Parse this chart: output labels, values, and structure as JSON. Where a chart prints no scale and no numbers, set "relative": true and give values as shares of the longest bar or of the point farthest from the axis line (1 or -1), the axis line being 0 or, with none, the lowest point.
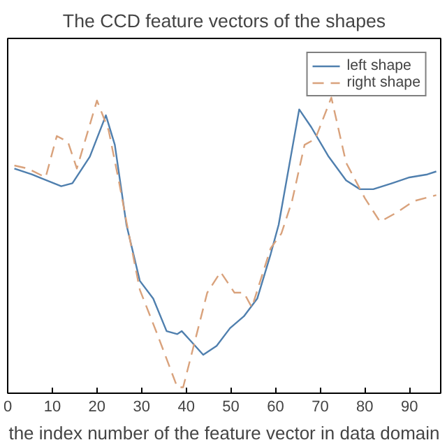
{
  "chart_data": {
    "type": "line",
    "title": "The CCD feature vectors of the shapes",
    "xlabel": "the index number of the feature vector in data domain",
    "relative": true,
    "xlim": [
      0,
      97
    ],
    "xticks": [
      0,
      10,
      20,
      30,
      40,
      50,
      60,
      70,
      80,
      90
    ],
    "grid": false,
    "legend": "top right",
    "series": [
      {
        "name": "left shape",
        "color": "#4f7fae",
        "line_style": "solid",
        "x": [
          1.5,
          5.4,
          12,
          14.5,
          18.4,
          22,
          24,
          26.6,
          29.6,
          32.6,
          35.6,
          38,
          39,
          40.8,
          43.8,
          46.8,
          49.8,
          52.9,
          55.9,
          58.9,
          60.7,
          65.3,
          68,
          71.9,
          75.8,
          78.9,
          81.9,
          86.1,
          90,
          94,
          96
        ],
        "values": [
          0.76,
          0.74,
          0.7,
          0.71,
          0.8,
          0.94,
          0.84,
          0.57,
          0.38,
          0.32,
          0.21,
          0.2,
          0.21,
          0.18,
          0.13,
          0.16,
          0.22,
          0.26,
          0.32,
          0.47,
          0.57,
          0.96,
          0.9,
          0.8,
          0.72,
          0.69,
          0.69,
          0.71,
          0.73,
          0.74,
          0.75
        ]
      },
      {
        "name": "right shape",
        "color": "#d9a27c",
        "line_style": "dashed",
        "x": [
          1.5,
          4.5,
          8.5,
          11,
          13.5,
          15.5,
          20,
          22.6,
          25,
          26.6,
          29.6,
          33.5,
          38,
          39.3,
          44.7,
          47.7,
          50.8,
          52.9,
          54.7,
          58.9,
          61.3,
          63.7,
          66.5,
          68.9,
          72.5,
          75.8,
          80,
          83.4,
          87,
          91,
          96
        ],
        "values": [
          0.77,
          0.76,
          0.73,
          0.87,
          0.85,
          0.76,
          0.99,
          0.89,
          0.71,
          0.58,
          0.35,
          0.2,
          0.02,
          0.02,
          0.34,
          0.41,
          0.34,
          0.34,
          0.29,
          0.49,
          0.54,
          0.65,
          0.84,
          0.86,
          1.0,
          0.78,
          0.66,
          0.58,
          0.61,
          0.65,
          0.67
        ]
      }
    ]
  }
}
